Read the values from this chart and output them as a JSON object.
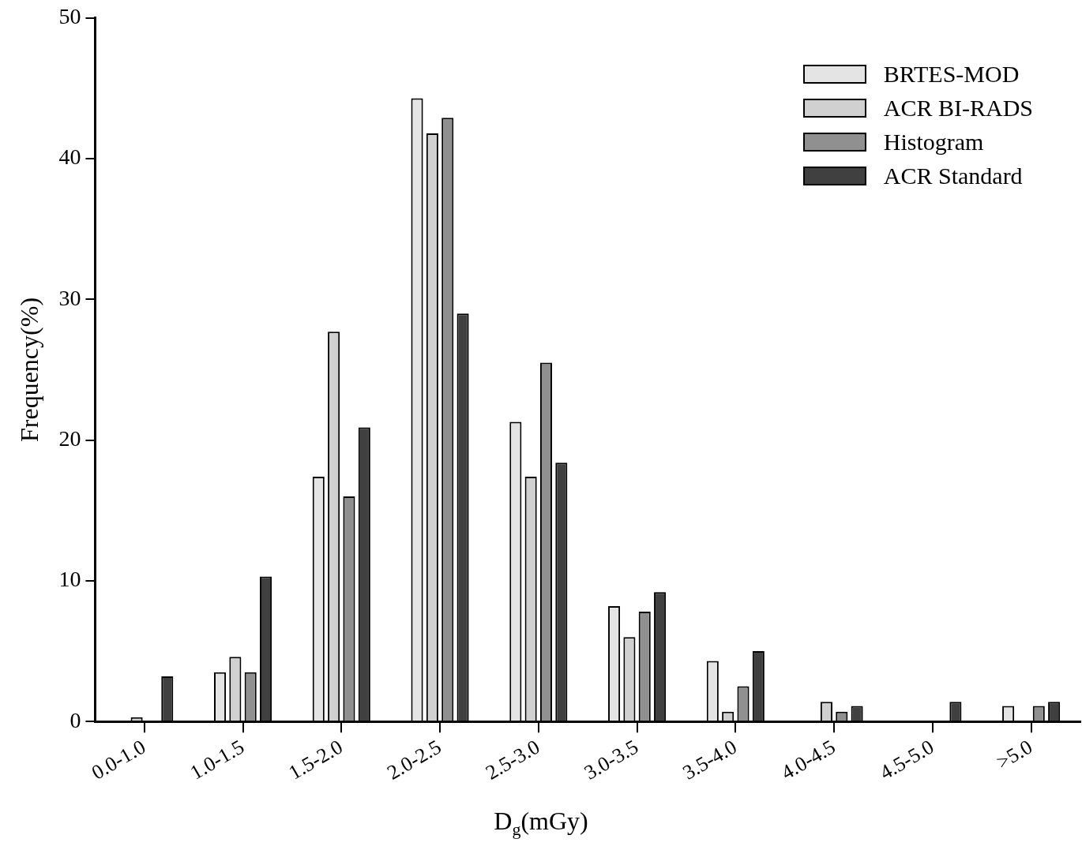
{
  "chart_data": {
    "type": "bar",
    "xlabel": "D$_{g}$(mGy)",
    "ylabel": "Frequency(%)",
    "categories": [
      "0.0-1.0",
      "1.0-1.5",
      "1.5-2.0",
      "2.0-2.5",
      "2.5-3.0",
      "3.0-3.5",
      "3.5-4.0",
      "4.0-4.5",
      "4.5-5.0",
      ">5.0"
    ],
    "series": [
      {
        "name": "BRTES-MOD",
        "color": "#e4e4e4",
        "values": [
          0,
          3.5,
          17.4,
          44.3,
          21.3,
          8.2,
          4.3,
          0,
          0,
          1.1
        ]
      },
      {
        "name": "ACR BI-RADS",
        "color": "#d0d0d0",
        "values": [
          0.3,
          4.6,
          27.7,
          41.8,
          17.4,
          6.0,
          0.7,
          1.4,
          0,
          0
        ]
      },
      {
        "name": "Histogram",
        "color": "#909090",
        "values": [
          0,
          3.5,
          16.0,
          42.9,
          25.5,
          7.8,
          2.5,
          0.7,
          0,
          1.1
        ]
      },
      {
        "name": "ACR Standard",
        "color": "#404040",
        "values": [
          3.2,
          10.3,
          20.9,
          29.0,
          18.4,
          9.2,
          5.0,
          1.1,
          1.4,
          1.4
        ]
      }
    ],
    "ylim": [
      0,
      50
    ],
    "yticks": [
      0,
      10,
      20,
      30,
      40,
      50
    ],
    "grid": false,
    "legend": "top right"
  }
}
